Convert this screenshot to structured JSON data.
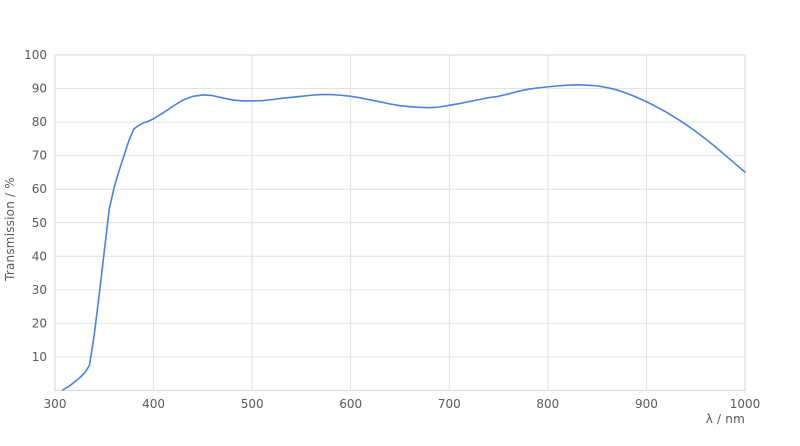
{
  "chart_data": {
    "type": "line",
    "title": "",
    "xlabel": "λ / nm",
    "ylabel": "Transmission / %",
    "xlim": [
      300,
      1000
    ],
    "ylim": [
      0,
      100
    ],
    "x_ticks": [
      300,
      400,
      500,
      600,
      700,
      800,
      900,
      1000
    ],
    "y_ticks": [
      10,
      20,
      30,
      40,
      50,
      60,
      70,
      80,
      90,
      100
    ],
    "grid": true,
    "legend": false,
    "series": [
      {
        "name": "Transmission",
        "color": "#4a82e4",
        "x": [
          308,
          310,
          315,
          320,
          325,
          330,
          335,
          340,
          345,
          350,
          355,
          360,
          365,
          370,
          375,
          380,
          385,
          390,
          395,
          400,
          410,
          420,
          430,
          440,
          450,
          460,
          470,
          480,
          490,
          500,
          510,
          520,
          530,
          540,
          550,
          560,
          570,
          580,
          590,
          600,
          610,
          620,
          630,
          640,
          650,
          660,
          670,
          680,
          690,
          700,
          710,
          720,
          730,
          740,
          750,
          760,
          770,
          780,
          790,
          800,
          810,
          820,
          830,
          840,
          850,
          860,
          870,
          880,
          890,
          900,
          910,
          920,
          930,
          940,
          950,
          960,
          970,
          980,
          990,
          1000
        ],
        "y": [
          0.2,
          0.5,
          1.4,
          2.6,
          3.8,
          5.2,
          7.5,
          17,
          29,
          41.5,
          54,
          60.5,
          65.5,
          70,
          74.5,
          78,
          79,
          79.8,
          80.3,
          81,
          82.8,
          84.8,
          86.6,
          87.7,
          88.1,
          87.9,
          87.2,
          86.6,
          86.3,
          86.3,
          86.4,
          86.7,
          87.1,
          87.4,
          87.7,
          88.0,
          88.2,
          88.2,
          88.0,
          87.7,
          87.2,
          86.6,
          86.0,
          85.4,
          84.9,
          84.6,
          84.4,
          84.3,
          84.5,
          85.0,
          85.5,
          86.1,
          86.7,
          87.3,
          87.7,
          88.4,
          89.2,
          89.8,
          90.2,
          90.5,
          90.8,
          91.0,
          91.1,
          91.0,
          90.8,
          90.3,
          89.6,
          88.6,
          87.4,
          86.1,
          84.6,
          83.0,
          81.2,
          79.3,
          77.2,
          75.0,
          72.6,
          70.1,
          67.6,
          65.1
        ]
      }
    ]
  },
  "colors": {
    "line": "#4a82e4",
    "grid": "#e2e2e2",
    "border": "#d6d6d6",
    "tick_text": "#5a5a5a",
    "background": "#ffffff"
  }
}
